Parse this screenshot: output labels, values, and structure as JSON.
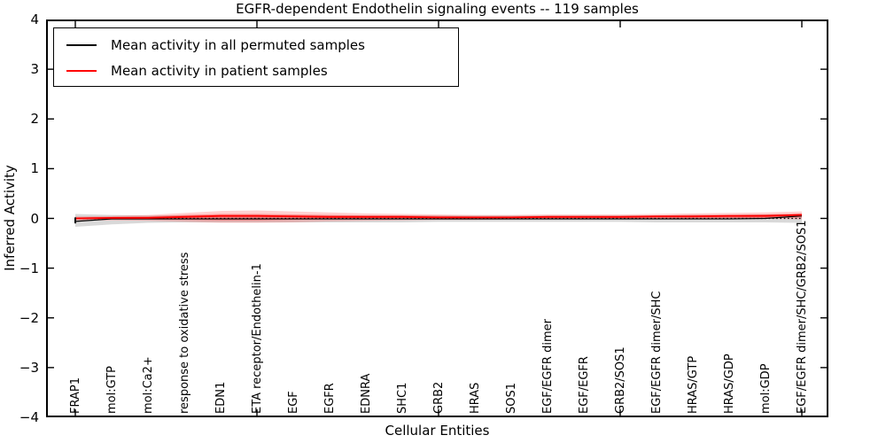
{
  "title": "EGFR-dependent Endothelin signaling events -- 119 samples",
  "axes": {
    "ylabel": "Inferred Activity",
    "xlabel": "Cellular Entities",
    "ytick_labels": [
      "4",
      "3",
      "2",
      "1",
      "0",
      "−1",
      "−2",
      "−3",
      "−4"
    ],
    "ytick_values": [
      4,
      3,
      2,
      1,
      0,
      -1,
      -2,
      -3,
      -4
    ]
  },
  "legend": {
    "items": [
      {
        "label": "Mean activity in all permuted samples",
        "color": "#000000"
      },
      {
        "label": "Mean activity in patient samples",
        "color": "#ff0000"
      }
    ]
  },
  "chart_data": {
    "type": "line",
    "title": "EGFR-dependent Endothelin signaling events -- 119 samples",
    "xlabel": "Cellular Entities",
    "ylabel": "Inferred Activity",
    "ylim": [
      -4,
      4
    ],
    "grid": false,
    "legend_position": "upper left",
    "zero_line": {
      "value": 0,
      "style": "dotted",
      "color": "#000000"
    },
    "x_major_tick_indices": [
      0,
      5,
      10,
      15,
      20
    ],
    "categories": [
      "FRAP1",
      "mol:GTP",
      "mol:Ca2+",
      "response to oxidative stress",
      "EDN1",
      "ETA receptor/Endothelin-1",
      "EGF",
      "EGFR",
      "EDNRA",
      "SHC1",
      "GRB2",
      "HRAS",
      "SOS1",
      "EGF/EGFR dimer",
      "EGF/EGFR",
      "GRB2/SOS1",
      "EGF/EGFR dimer/SHC",
      "HRAS/GTP",
      "HRAS/GDP",
      "mol:GDP",
      "EGF/EGFR dimer/SHC/GRB2/SOS1"
    ],
    "series": [
      {
        "name": "Mean activity in all permuted samples",
        "color": "#000000",
        "line_width": 1.2,
        "values": [
          -0.06,
          -0.01,
          -0.01,
          -0.01,
          -0.01,
          -0.01,
          -0.01,
          -0.01,
          -0.01,
          -0.01,
          -0.01,
          -0.01,
          -0.01,
          -0.01,
          -0.01,
          -0.01,
          -0.01,
          -0.01,
          -0.01,
          0.0,
          0.05
        ],
        "band_color": "rgba(120,120,120,0.28)",
        "band_upper": [
          0.09,
          0.07,
          0.06,
          0.06,
          0.06,
          0.06,
          0.06,
          0.06,
          0.06,
          0.06,
          0.06,
          0.06,
          0.06,
          0.06,
          0.06,
          0.06,
          0.06,
          0.07,
          0.07,
          0.08,
          0.08
        ],
        "band_lower": [
          -0.17,
          -0.12,
          -0.09,
          -0.08,
          -0.08,
          -0.08,
          -0.08,
          -0.08,
          -0.08,
          -0.08,
          -0.07,
          -0.07,
          -0.07,
          -0.07,
          -0.07,
          -0.07,
          -0.08,
          -0.08,
          -0.08,
          -0.08,
          -0.09
        ],
        "start_cap": {
          "index": 0,
          "from": -0.1,
          "to": 0.02
        }
      },
      {
        "name": "Mean activity in patient samples",
        "color": "#ff0000",
        "line_width": 1.8,
        "values": [
          0.0,
          0.01,
          0.01,
          0.03,
          0.05,
          0.05,
          0.04,
          0.03,
          0.03,
          0.03,
          0.02,
          0.02,
          0.02,
          0.03,
          0.03,
          0.03,
          0.04,
          0.04,
          0.05,
          0.05,
          0.07
        ],
        "band_color": "rgba(255,0,0,0.18)",
        "band_upper": [
          0.04,
          0.05,
          0.07,
          0.11,
          0.15,
          0.16,
          0.14,
          0.12,
          0.1,
          0.09,
          0.08,
          0.07,
          0.07,
          0.08,
          0.08,
          0.08,
          0.09,
          0.1,
          0.11,
          0.12,
          0.14
        ],
        "band_lower": [
          -0.04,
          -0.04,
          -0.05,
          -0.07,
          -0.09,
          -0.09,
          -0.08,
          -0.06,
          -0.05,
          -0.04,
          -0.03,
          -0.03,
          -0.02,
          -0.02,
          -0.02,
          -0.01,
          -0.01,
          -0.01,
          -0.01,
          -0.01,
          -0.02
        ],
        "band_inner_color": "rgba(255,0,0,0.30)",
        "band_inner_upper": [
          0.02,
          0.03,
          0.04,
          0.07,
          0.09,
          0.09,
          0.08,
          0.07,
          0.06,
          0.06,
          0.05,
          0.04,
          0.04,
          0.05,
          0.05,
          0.05,
          0.06,
          0.07,
          0.07,
          0.08,
          0.1
        ],
        "band_inner_lower": [
          -0.02,
          -0.02,
          -0.02,
          -0.03,
          -0.04,
          -0.04,
          -0.03,
          -0.02,
          -0.02,
          -0.01,
          -0.01,
          -0.01,
          -0.01,
          0.0,
          0.0,
          0.0,
          0.0,
          0.0,
          0.01,
          0.01,
          0.02
        ]
      }
    ]
  }
}
